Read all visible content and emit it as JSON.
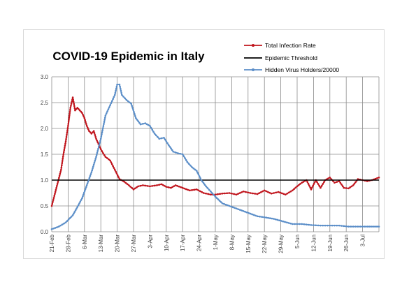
{
  "chart_data": {
    "type": "line",
    "title": "COVID-19 Epidemic in Italy",
    "xlabel": "",
    "ylabel": "",
    "ylim": [
      0,
      3.0
    ],
    "y_ticks": [
      "0.0",
      "0.5",
      "1.0",
      "1.5",
      "2.0",
      "2.5",
      "3.0"
    ],
    "x_range": [
      "21-Feb",
      "10-Jul"
    ],
    "x_tick_labels": [
      "21-Feb",
      "28-Feb",
      "6-Mar",
      "13-Mar",
      "20-Mar",
      "27-Mar",
      "3-Apr",
      "10-Apr",
      "17-Apr",
      "24-Apr",
      "1-May",
      "8-May",
      "15-May",
      "22-May",
      "29-May",
      "5-Jun",
      "12-Jun",
      "19-Jun",
      "26-Jun",
      "3-Jul"
    ],
    "grid": "vertical and horizontal",
    "legend_position": "top-right",
    "colors": {
      "Total Infection Rate": "#c0141c",
      "Epidemic Threshold": "#000000",
      "Hidden Virus Holders/20000": "#5b8ec8"
    },
    "series": [
      {
        "name": "Total Infection Rate",
        "x": [
          "21-Feb",
          "23-Feb",
          "25-Feb",
          "26-Feb",
          "27-Feb",
          "28-Feb",
          "29-Feb",
          "1-Mar",
          "2-Mar",
          "3-Mar",
          "4-Mar",
          "5-Mar",
          "6-Mar",
          "7-Mar",
          "8-Mar",
          "9-Mar",
          "10-Mar",
          "11-Mar",
          "12-Mar",
          "13-Mar",
          "14-Mar",
          "15-Mar",
          "17-Mar",
          "19-Mar",
          "21-Mar",
          "23-Mar",
          "25-Mar",
          "27-Mar",
          "29-Mar",
          "31-Mar",
          "3-Apr",
          "6-Apr",
          "8-Apr",
          "10-Apr",
          "12-Apr",
          "14-Apr",
          "17-Apr",
          "20-Apr",
          "23-Apr",
          "26-Apr",
          "29-Apr",
          "1-May",
          "4-May",
          "7-May",
          "10-May",
          "13-May",
          "16-May",
          "19-May",
          "22-May",
          "25-May",
          "28-May",
          "31-May",
          "3-Jun",
          "5-Jun",
          "7-Jun",
          "9-Jun",
          "11-Jun",
          "13-Jun",
          "15-Jun",
          "17-Jun",
          "19-Jun",
          "21-Jun",
          "23-Jun",
          "25-Jun",
          "27-Jun",
          "29-Jun",
          "1-Jul",
          "3-Jul",
          "5-Jul",
          "7-Jul",
          "10-Jul"
        ],
        "values": [
          0.5,
          0.85,
          1.2,
          1.5,
          1.75,
          2.05,
          2.4,
          2.6,
          2.35,
          2.4,
          2.35,
          2.3,
          2.2,
          2.05,
          1.95,
          1.9,
          1.95,
          1.8,
          1.7,
          1.6,
          1.52,
          1.45,
          1.38,
          1.2,
          1.02,
          0.97,
          0.9,
          0.82,
          0.88,
          0.9,
          0.88,
          0.9,
          0.92,
          0.87,
          0.85,
          0.9,
          0.85,
          0.8,
          0.82,
          0.75,
          0.72,
          0.72,
          0.74,
          0.75,
          0.72,
          0.78,
          0.75,
          0.73,
          0.8,
          0.74,
          0.77,
          0.72,
          0.8,
          0.88,
          0.95,
          1.0,
          0.82,
          1.0,
          0.85,
          1.0,
          1.05,
          0.95,
          0.98,
          0.85,
          0.84,
          0.9,
          1.02,
          1.0,
          0.98,
          1.0,
          1.05
        ]
      },
      {
        "name": "Epidemic Threshold",
        "x": [
          "21-Feb",
          "10-Jul"
        ],
        "values": [
          1.0,
          1.0
        ]
      },
      {
        "name": "Hidden Virus Holders/20000",
        "x": [
          "21-Feb",
          "24-Feb",
          "27-Feb",
          "1-Mar",
          "3-Mar",
          "5-Mar",
          "7-Mar",
          "9-Mar",
          "11-Mar",
          "13-Mar",
          "15-Mar",
          "17-Mar",
          "19-Mar",
          "20-Mar",
          "21-Mar",
          "22-Mar",
          "24-Mar",
          "26-Mar",
          "28-Mar",
          "30-Mar",
          "1-Apr",
          "3-Apr",
          "5-Apr",
          "7-Apr",
          "9-Apr",
          "11-Apr",
          "13-Apr",
          "15-Apr",
          "17-Apr",
          "19-Apr",
          "21-Apr",
          "23-Apr",
          "25-Apr",
          "27-Apr",
          "29-Apr",
          "1-May",
          "4-May",
          "7-May",
          "10-May",
          "13-May",
          "16-May",
          "19-May",
          "22-May",
          "26-May",
          "30-May",
          "3-Jun",
          "7-Jun",
          "11-Jun",
          "15-Jun",
          "19-Jun",
          "23-Jun",
          "27-Jun",
          "1-Jul",
          "5-Jul",
          "10-Jul"
        ],
        "values": [
          0.05,
          0.1,
          0.18,
          0.32,
          0.48,
          0.65,
          0.9,
          1.15,
          1.45,
          1.8,
          2.25,
          2.45,
          2.65,
          2.85,
          2.85,
          2.65,
          2.55,
          2.48,
          2.2,
          2.08,
          2.1,
          2.05,
          1.9,
          1.8,
          1.82,
          1.68,
          1.55,
          1.52,
          1.5,
          1.35,
          1.25,
          1.18,
          1.0,
          0.88,
          0.78,
          0.68,
          0.55,
          0.5,
          0.45,
          0.4,
          0.35,
          0.3,
          0.28,
          0.25,
          0.2,
          0.15,
          0.15,
          0.13,
          0.12,
          0.12,
          0.12,
          0.1,
          0.1,
          0.1,
          0.1
        ]
      }
    ]
  }
}
